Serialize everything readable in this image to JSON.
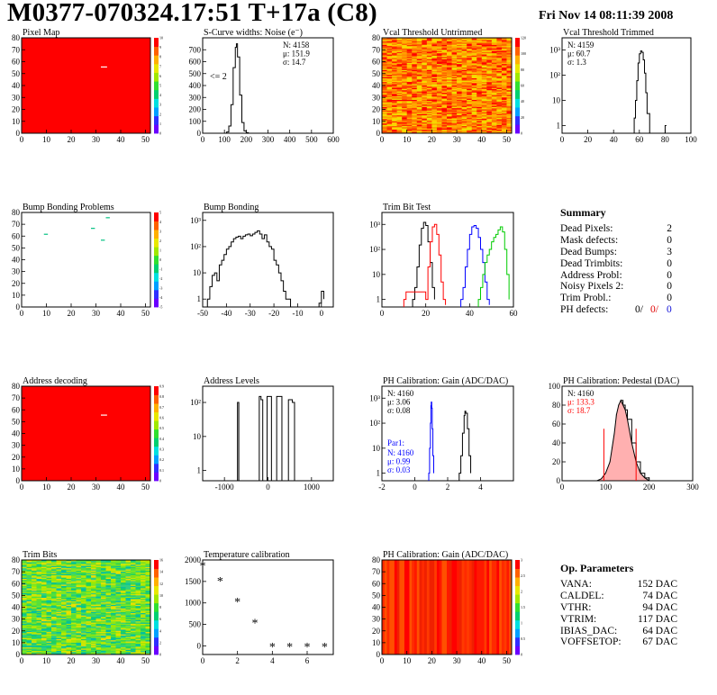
{
  "header": {
    "title": "M0377-070324.17:51 T+17a (C8)",
    "date": "Fri Nov 14 08:11:39 2008"
  },
  "colors": {
    "red": "#ff0000",
    "blue": "#0000ff",
    "green": "#00cc00",
    "black": "#000000"
  },
  "chart_data": [
    {
      "id": "pixel_map",
      "type": "heatmap",
      "title": "Pixel Map",
      "xlim": [
        0,
        52
      ],
      "ylim": [
        0,
        80
      ],
      "xticks": [
        0,
        10,
        20,
        30,
        40,
        50
      ],
      "yticks": [
        0,
        10,
        20,
        30,
        40,
        50,
        60,
        70,
        80
      ],
      "palette_labels": [
        "0",
        "1",
        "2",
        "3",
        "4",
        "5",
        "6",
        "7",
        "8",
        "9",
        "10"
      ],
      "fill": "uniform-max",
      "marks": [
        {
          "col": 32,
          "row": 55,
          "color": "white"
        }
      ]
    },
    {
      "id": "noise",
      "type": "line",
      "title": "S-Curve widths: Noise (e⁻)",
      "xlim": [
        0,
        600
      ],
      "ylim": [
        0,
        800
      ],
      "xticks": [
        0,
        100,
        200,
        300,
        400,
        500,
        600
      ],
      "yticks": [
        0,
        100,
        200,
        300,
        400,
        500,
        600,
        700
      ],
      "stats": [
        "N: 4158",
        "μ: 151.9",
        "σ: 14.7"
      ],
      "annotation": "<= 2",
      "x": [
        100,
        110,
        120,
        130,
        140,
        150,
        155,
        160,
        170,
        180,
        190,
        200,
        210
      ],
      "y": [
        0,
        10,
        60,
        240,
        550,
        720,
        750,
        640,
        320,
        90,
        20,
        5,
        0
      ]
    },
    {
      "id": "vcal_untrimmed",
      "type": "heatmap",
      "title": "Vcal Threshold Untrimmed",
      "xlim": [
        0,
        52
      ],
      "ylim": [
        0,
        80
      ],
      "xticks": [
        0,
        10,
        20,
        30,
        40,
        50
      ],
      "yticks": [
        0,
        10,
        20,
        30,
        40,
        50,
        60,
        70,
        80
      ],
      "palette_labels": [
        "0",
        "20",
        "40",
        "60",
        "80",
        "100",
        "120"
      ],
      "fill": "noisy-warm"
    },
    {
      "id": "vcal_trimmed",
      "type": "line",
      "title": "Vcal Threshold Trimmed",
      "log": true,
      "xlim": [
        0,
        100
      ],
      "ylim_log": [
        0.5,
        3000
      ],
      "xticks": [
        0,
        20,
        40,
        60,
        80,
        100
      ],
      "yticks": [
        1,
        10,
        100,
        1000
      ],
      "yticklabels": [
        "1",
        "10",
        "10²",
        "10³"
      ],
      "stats": [
        "N: 4159",
        "μ: 60.7",
        "σ:  1.3"
      ],
      "x": [
        54,
        56,
        57,
        58,
        59,
        60,
        61,
        62,
        63,
        64,
        65,
        66,
        68,
        80,
        81
      ],
      "y": [
        0.5,
        2,
        10,
        60,
        300,
        700,
        900,
        800,
        400,
        120,
        20,
        3,
        0.5,
        1,
        1
      ]
    },
    {
      "id": "bump_problems",
      "type": "heatmap",
      "title": "Bump Bonding Problems",
      "xlim": [
        0,
        52
      ],
      "ylim": [
        0,
        80
      ],
      "xticks": [
        0,
        10,
        20,
        30,
        40,
        50
      ],
      "yticks": [
        0,
        10,
        20,
        30,
        40,
        50,
        60,
        70,
        80
      ],
      "palette_labels": [
        "-5",
        "-4",
        "-3",
        "-2",
        "-1",
        "0",
        "1",
        "2",
        "3",
        "4",
        "5"
      ],
      "fill": "empty",
      "marks": [
        {
          "col": 9,
          "row": 61,
          "color": "#00c080"
        },
        {
          "col": 28,
          "row": 66,
          "color": "#00c080"
        },
        {
          "col": 32,
          "row": 56,
          "color": "#00c080"
        },
        {
          "col": 34,
          "row": 75,
          "color": "#00c080"
        }
      ]
    },
    {
      "id": "bump_bonding",
      "type": "line",
      "title": "Bump Bonding",
      "log": true,
      "xlim": [
        -50,
        5
      ],
      "ylim_log": [
        0.5,
        2000
      ],
      "xticks": [
        -50,
        -40,
        -30,
        -20,
        -10,
        0
      ],
      "yticks": [
        1,
        10,
        100,
        1000
      ],
      "yticklabels": [
        "1",
        "10",
        "10²",
        "10³"
      ],
      "x": [
        -48,
        -47,
        -46,
        -45,
        -44,
        -43,
        -42,
        -41,
        -40,
        -39,
        -38,
        -37,
        -36,
        -35,
        -34,
        -33,
        -32,
        -31,
        -30,
        -29,
        -28,
        -27,
        -26,
        -25,
        -24,
        -23,
        -22,
        -21,
        -20,
        -19,
        -18,
        -17,
        -16,
        -15,
        -14,
        -13,
        -1,
        0,
        1
      ],
      "y": [
        1,
        3,
        8,
        10,
        5,
        20,
        30,
        50,
        80,
        100,
        150,
        200,
        230,
        250,
        200,
        250,
        280,
        300,
        260,
        300,
        350,
        400,
        300,
        200,
        280,
        150,
        100,
        80,
        30,
        20,
        10,
        5,
        2,
        1,
        1,
        0.5,
        0.7,
        2,
        1
      ]
    },
    {
      "id": "trim_bits",
      "type": "line",
      "title": "Trim Bit Test",
      "log": true,
      "xlim": [
        0,
        60
      ],
      "ylim_log": [
        0.5,
        3000
      ],
      "xticks": [
        0,
        20,
        40,
        60
      ],
      "yticks": [
        1,
        10,
        100,
        1000
      ],
      "yticklabels": [
        "1",
        "10",
        "10²",
        "10³"
      ],
      "series": [
        {
          "color": "#000000",
          "x": [
            14,
            15,
            16,
            17,
            18,
            19,
            20,
            21,
            22,
            23,
            24
          ],
          "y": [
            1,
            3,
            20,
            150,
            700,
            1200,
            900,
            200,
            30,
            3,
            1
          ]
        },
        {
          "color": "#ff0000",
          "x": [
            10,
            11,
            20,
            21,
            22,
            23,
            24,
            25,
            26,
            27,
            28,
            29
          ],
          "y": [
            1,
            2,
            1,
            20,
            200,
            800,
            1000,
            400,
            60,
            5,
            1,
            0.6
          ]
        },
        {
          "color": "#0000ff",
          "x": [
            36,
            37,
            38,
            39,
            40,
            41,
            42,
            43,
            44,
            45,
            46,
            47,
            48,
            49
          ],
          "y": [
            1,
            3,
            20,
            100,
            400,
            800,
            900,
            700,
            300,
            100,
            30,
            5,
            1,
            0.6
          ]
        },
        {
          "color": "#00cc00",
          "x": [
            44,
            45,
            46,
            47,
            48,
            49,
            50,
            51,
            52,
            53,
            54,
            55,
            56,
            57,
            58
          ],
          "y": [
            1,
            3,
            10,
            30,
            60,
            100,
            200,
            300,
            400,
            600,
            800,
            500,
            100,
            10,
            1
          ]
        }
      ]
    },
    {
      "id": "address_decoding",
      "type": "heatmap",
      "title": "Address decoding",
      "xlim": [
        0,
        52
      ],
      "ylim": [
        0,
        80
      ],
      "xticks": [
        0,
        10,
        20,
        30,
        40,
        50
      ],
      "yticks": [
        0,
        10,
        20,
        30,
        40,
        50,
        60,
        70,
        80
      ],
      "palette_labels": [
        "0",
        "0.1",
        "0.2",
        "0.3",
        "0.4",
        "0.5",
        "0.6",
        "0.7",
        "0.8",
        "0.9"
      ],
      "fill": "uniform-max",
      "marks": [
        {
          "col": 32,
          "row": 55,
          "color": "white"
        }
      ]
    },
    {
      "id": "address_levels",
      "type": "line",
      "title": "Address Levels",
      "log": true,
      "xlim": [
        -1500,
        1500
      ],
      "ylim_log": [
        0.5,
        300
      ],
      "xticks": [
        -1000,
        0,
        1000
      ],
      "yticks": [
        1,
        10,
        100
      ],
      "yticklabels": [
        "1",
        "10",
        "10²"
      ],
      "x": [
        -720,
        -700,
        -690,
        -670,
        -250,
        -200,
        -160,
        -120,
        -70,
        -20,
        30,
        80,
        150,
        200,
        270,
        320,
        420,
        470,
        560,
        610
      ],
      "y": [
        0.5,
        100,
        100,
        0.5,
        0.5,
        150,
        120,
        0.5,
        0.5,
        150,
        150,
        0.5,
        0.5,
        150,
        150,
        0.5,
        0.5,
        120,
        100,
        0.5
      ]
    },
    {
      "id": "ph_gain",
      "type": "line",
      "title": "PH Calibration: Gain (ADC/DAC)",
      "log": true,
      "xlim": [
        -2,
        6
      ],
      "ylim_log": [
        0.5,
        3000
      ],
      "xticks": [
        -2,
        0,
        2,
        4
      ],
      "yticks": [
        1,
        10,
        100,
        1000
      ],
      "yticklabels": [
        "1",
        "10",
        "10²",
        "10³"
      ],
      "stats": [
        "N: 4160",
        "μ: 3.06",
        "σ: 0.08"
      ],
      "par1_label": "Par1:",
      "stats2": [
        "N: 4160",
        "μ: 0.99",
        "σ: 0.03"
      ],
      "series": [
        {
          "color": "#000000",
          "x": [
            2.7,
            2.8,
            2.9,
            3.0,
            3.05,
            3.1,
            3.2,
            3.3,
            3.4
          ],
          "y": [
            1,
            5,
            40,
            200,
            300,
            250,
            60,
            5,
            1
          ]
        },
        {
          "color": "#0000ff",
          "x": [
            0.85,
            0.9,
            0.95,
            0.98,
            1.0,
            1.03,
            1.06,
            1.1,
            1.15
          ],
          "y": [
            1,
            10,
            100,
            500,
            700,
            400,
            60,
            5,
            1
          ]
        }
      ]
    },
    {
      "id": "ph_pedestal",
      "type": "line",
      "title": "PH Calibration: Pedestal (DAC)",
      "xlim": [
        0,
        300
      ],
      "ylim": [
        0,
        100
      ],
      "xticks": [
        0,
        100,
        200,
        300
      ],
      "yticks": [
        0,
        20,
        40,
        60,
        80,
        100
      ],
      "stats": [
        "N: 4160",
        "μ: 133.3",
        "σ: 18.7"
      ],
      "cuts": [
        96,
        170
      ],
      "x": [
        80,
        90,
        100,
        110,
        115,
        120,
        125,
        130,
        135,
        140,
        145,
        150,
        160,
        170,
        180,
        190,
        200
      ],
      "y": [
        0,
        2,
        8,
        20,
        35,
        50,
        70,
        80,
        85,
        80,
        75,
        65,
        40,
        20,
        8,
        3,
        0
      ]
    },
    {
      "id": "trim_bits_map",
      "type": "heatmap",
      "title": "Trim Bits",
      "xlim": [
        0,
        52
      ],
      "ylim": [
        0,
        80
      ],
      "xticks": [
        0,
        10,
        20,
        30,
        40,
        50
      ],
      "yticks": [
        0,
        10,
        20,
        30,
        40,
        50,
        60,
        70,
        80
      ],
      "palette_labels": [
        "0",
        "2",
        "4",
        "6",
        "8",
        "10",
        "12",
        "14",
        "16"
      ],
      "fill": "noisy-green"
    },
    {
      "id": "temperature",
      "type": "scatter",
      "title": "Temperature calibration",
      "xlim": [
        0,
        7.5
      ],
      "ylim": [
        -200,
        2000
      ],
      "xticks": [
        0,
        2,
        4,
        6
      ],
      "yticks": [
        0,
        500,
        1000,
        1500,
        2000
      ],
      "x": [
        0,
        1,
        2,
        3,
        4,
        5,
        6,
        7
      ],
      "y": [
        1850,
        1500,
        1020,
        520,
        -30,
        -30,
        -30,
        -30
      ]
    },
    {
      "id": "ph_gain_map",
      "type": "heatmap",
      "title": "PH Calibration: Gain (ADC/DAC)",
      "xlim": [
        0,
        52
      ],
      "ylim": [
        0,
        80
      ],
      "xticks": [
        0,
        10,
        20,
        30,
        40,
        50
      ],
      "yticks": [
        0,
        10,
        20,
        30,
        40,
        50,
        60,
        70,
        80
      ],
      "palette_labels": [
        "0",
        "0.5",
        "1",
        "1.5",
        "2",
        "2.5",
        "3"
      ],
      "fill": "column-red"
    }
  ],
  "summary": {
    "title": "Summary",
    "items": [
      {
        "label": "Dead Pixels:",
        "value": "2"
      },
      {
        "label": "Mask defects:",
        "value": "0"
      },
      {
        "label": "Dead Bumps:",
        "value": "3"
      },
      {
        "label": "Dead Trimbits:",
        "value": "0"
      },
      {
        "label": "Address Probl:",
        "value": "0"
      },
      {
        "label": "Noisy Pixels 2:",
        "value": "0"
      },
      {
        "label": "Trim Probl.:",
        "value": "0"
      }
    ],
    "ph": {
      "label": "PH defects:",
      "v1": "0/",
      "v2": "0/",
      "v3": "0"
    }
  },
  "parameters": {
    "title": "Op. Parameters",
    "items": [
      {
        "label": "VANA:",
        "value": "152 DAC"
      },
      {
        "label": "CALDEL:",
        "value": "74 DAC"
      },
      {
        "label": "VTHR:",
        "value": "94 DAC"
      },
      {
        "label": "VTRIM:",
        "value": "117 DAC"
      },
      {
        "label": "IBIAS_DAC:",
        "value": "64 DAC"
      },
      {
        "label": "VOFFSETOP:",
        "value": "67 DAC"
      }
    ]
  }
}
